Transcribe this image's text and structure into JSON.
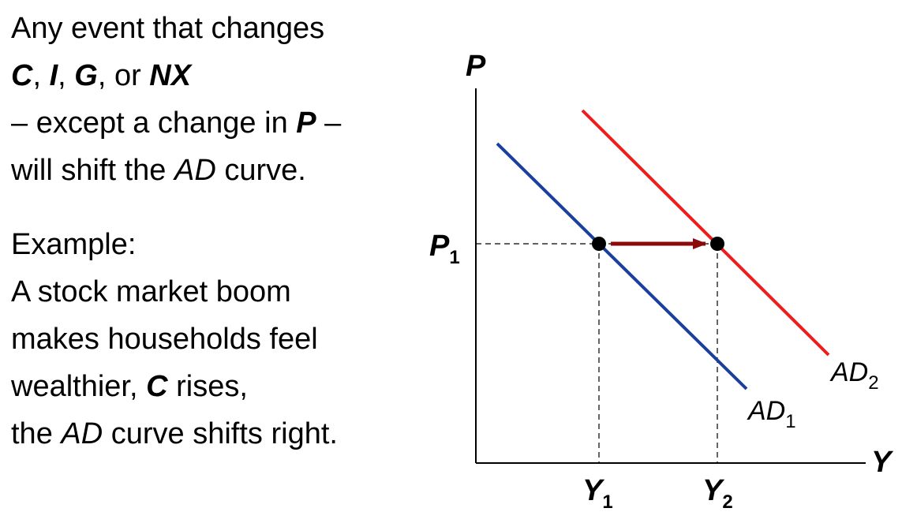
{
  "intro": {
    "line1": "Any event that changes",
    "line2": {
      "c": "C",
      "sep1": ", ",
      "i": "I",
      "sep2": ", ",
      "g": "G",
      "sep3": ", or ",
      "nx": "NX"
    },
    "line3": {
      "pre": "– except a change in ",
      "p": "P",
      "post": " –"
    },
    "line4": {
      "pre": "will shift the ",
      "ad": "AD",
      "post": " curve."
    }
  },
  "example": {
    "heading": "Example:",
    "line1": "A stock market boom",
    "line2": "makes households feel",
    "line3": {
      "pre": "wealthier, ",
      "c": "C",
      "post": " rises,"
    },
    "line4": {
      "pre": "the ",
      "ad": "AD",
      "post": " curve shifts right."
    }
  },
  "diagram": {
    "y_axis_label": "P",
    "x_axis_label": "Y",
    "price_label": "P",
    "price_sub": "1",
    "y1_label": "Y",
    "y1_sub": "1",
    "y2_label": "Y",
    "y2_sub": "2",
    "ad1_label": "AD",
    "ad1_sub": "1",
    "ad2_label": "AD",
    "ad2_sub": "2",
    "colors": {
      "ad1": "#1a3f9e",
      "ad2": "#ee1c1c",
      "arrow": "#8b0a0a",
      "axis": "#000000"
    }
  }
}
